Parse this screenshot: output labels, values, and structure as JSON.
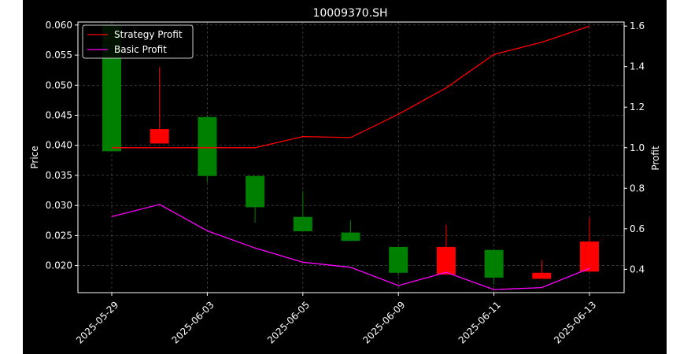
{
  "chart_data": {
    "type": "candlestick",
    "title": "10009370.SH",
    "ylabel_left": "Price",
    "ylabel_right": "Profit",
    "grid": true,
    "legend_position": "top-left",
    "x_tick_labels": [
      "2025-05-29",
      "2025-06-03",
      "2025-06-05",
      "2025-06-09",
      "2025-06-11",
      "2025-06-13"
    ],
    "x_tick_indices": [
      0,
      2,
      4,
      6,
      8,
      10
    ],
    "left_axis": {
      "ylim": [
        0.0155,
        0.0605
      ],
      "ticks": [
        0.02,
        0.025,
        0.03,
        0.035,
        0.04,
        0.045,
        0.05,
        0.055,
        0.06
      ],
      "tick_labels": [
        "0.020",
        "0.025",
        "0.030",
        "0.035",
        "0.040",
        "0.045",
        "0.050",
        "0.055",
        "0.060"
      ]
    },
    "right_axis": {
      "ylim": [
        0.285,
        1.62
      ],
      "ticks": [
        0.4,
        0.6,
        0.8,
        1.0,
        1.2,
        1.4,
        1.6
      ],
      "tick_labels": [
        "0.4",
        "0.6",
        "0.8",
        "1.0",
        "1.2",
        "1.4",
        "1.6"
      ]
    },
    "candles": [
      {
        "open": 0.039,
        "high": 0.06,
        "low": 0.039,
        "close": 0.06
      },
      {
        "open": 0.0427,
        "high": 0.053,
        "low": 0.0403,
        "close": 0.0403
      },
      {
        "open": 0.0349,
        "high": 0.045,
        "low": 0.0339,
        "close": 0.0447
      },
      {
        "open": 0.0297,
        "high": 0.0349,
        "low": 0.0271,
        "close": 0.0349
      },
      {
        "open": 0.0257,
        "high": 0.0324,
        "low": 0.0257,
        "close": 0.0281
      },
      {
        "open": 0.0241,
        "high": 0.0275,
        "low": 0.0241,
        "close": 0.0255
      },
      {
        "open": 0.0188,
        "high": 0.0231,
        "low": 0.0183,
        "close": 0.0231
      },
      {
        "open": 0.0231,
        "high": 0.0268,
        "low": 0.0185,
        "close": 0.0185
      },
      {
        "open": 0.018,
        "high": 0.0226,
        "low": 0.0169,
        "close": 0.0226
      },
      {
        "open": 0.0188,
        "high": 0.0209,
        "low": 0.0178,
        "close": 0.0178
      },
      {
        "open": 0.024,
        "high": 0.028,
        "low": 0.019,
        "close": 0.019
      }
    ],
    "series": [
      {
        "name": "Strategy Profit",
        "color": "#ff0000",
        "values": [
          1.0,
          1.0,
          1.0,
          1.0,
          1.055,
          1.05,
          1.165,
          1.295,
          1.46,
          1.52,
          1.6
        ]
      },
      {
        "name": "Basic Profit",
        "color": "#ff00ff",
        "values": [
          0.66,
          0.72,
          0.59,
          0.505,
          0.435,
          0.41,
          0.32,
          0.385,
          0.3,
          0.31,
          0.405
        ]
      }
    ],
    "colors": {
      "up": "#008000",
      "down": "#ff0000",
      "background": "#000000",
      "grid": "#808080"
    }
  }
}
